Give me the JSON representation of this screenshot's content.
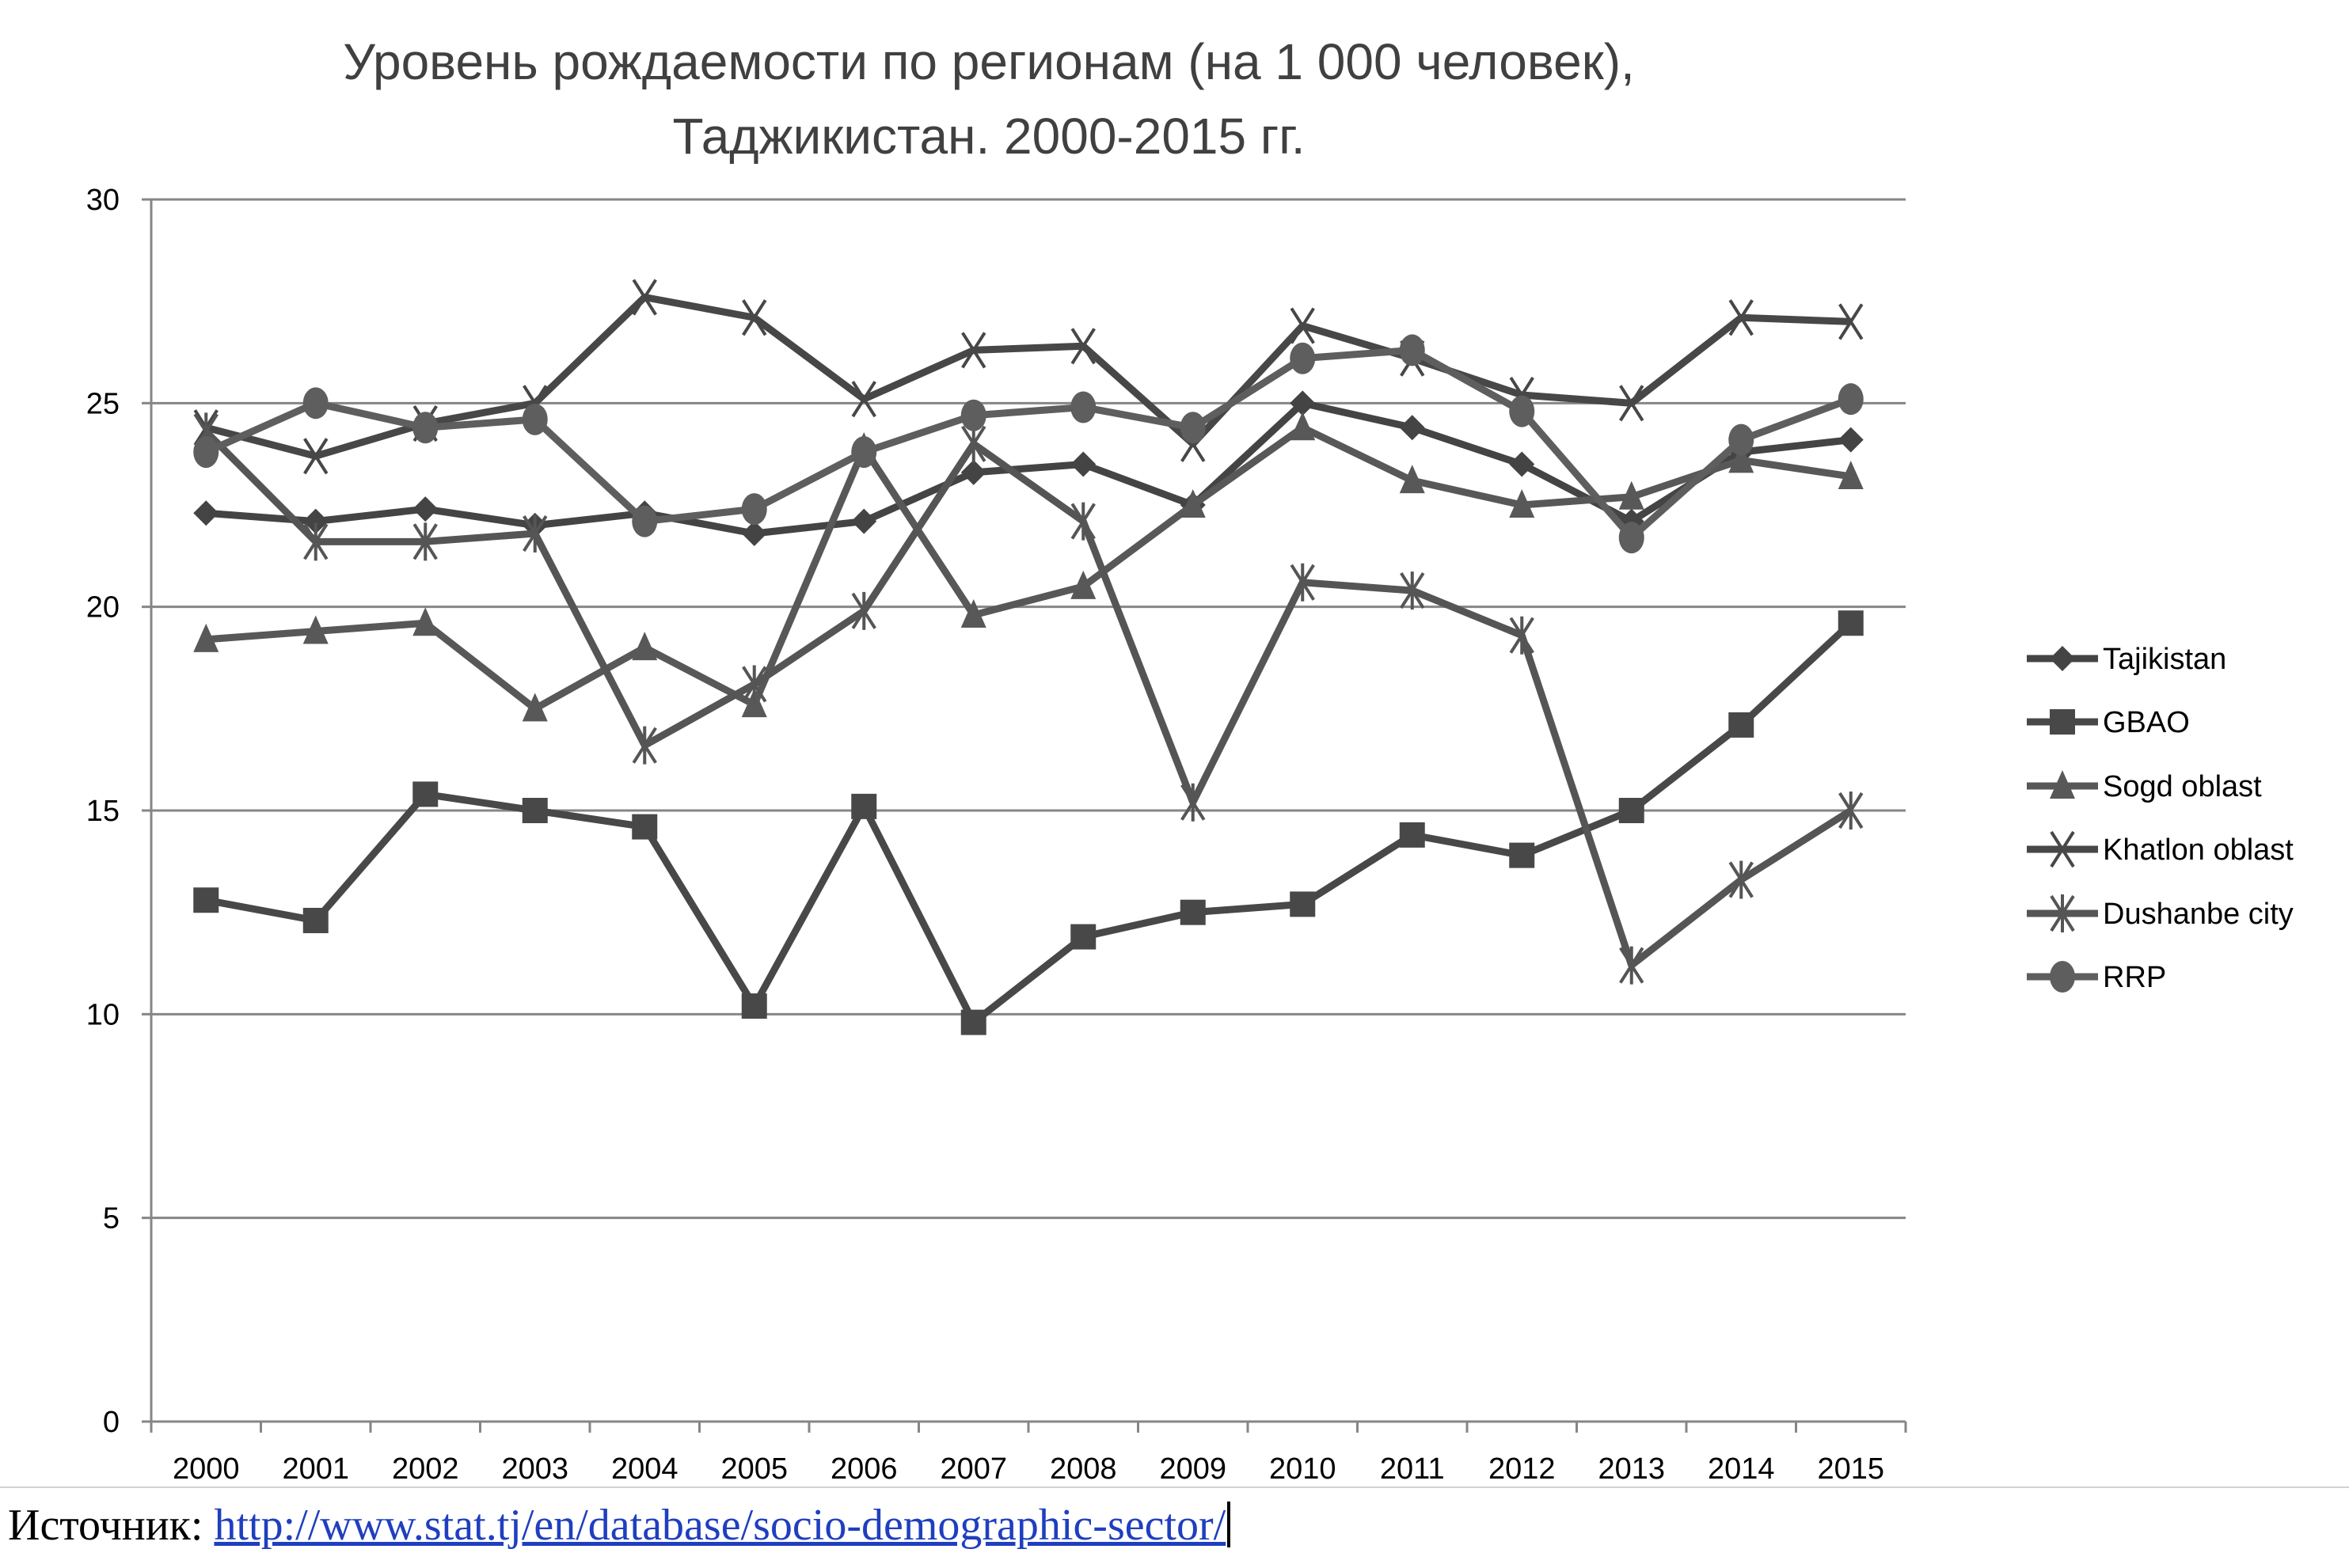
{
  "chart_data": {
    "type": "line",
    "title": [
      "Уровень рождаемости по регионам (на 1 000 человек),",
      "Таджикистан. 2000-2015 гг."
    ],
    "categories": [
      "2000",
      "2001",
      "2002",
      "2003",
      "2004",
      "2005",
      "2006",
      "2007",
      "2008",
      "2009",
      "2010",
      "2011",
      "2012",
      "2013",
      "2014",
      "2015"
    ],
    "ylim": [
      0,
      30
    ],
    "yticks": [
      0,
      5,
      10,
      15,
      20,
      25,
      30
    ],
    "grid": true,
    "legend_position": "right",
    "series": [
      {
        "name": "Tajikistan",
        "marker": "diamond",
        "color": "#444444",
        "values": [
          22.3,
          22.1,
          22.4,
          22.0,
          22.3,
          21.8,
          22.1,
          23.3,
          23.5,
          22.5,
          25.0,
          24.4,
          23.5,
          22.1,
          23.8,
          24.1
        ]
      },
      {
        "name": "GBAO",
        "marker": "square",
        "color": "#484848",
        "values": [
          12.8,
          12.3,
          15.4,
          15.0,
          14.6,
          10.2,
          15.1,
          9.8,
          11.9,
          12.5,
          12.7,
          14.4,
          13.9,
          15.0,
          17.1,
          19.6
        ]
      },
      {
        "name": "Sogd oblast",
        "marker": "triangle",
        "color": "#585858",
        "values": [
          19.2,
          19.4,
          19.6,
          17.5,
          19.0,
          17.6,
          23.9,
          19.8,
          20.5,
          22.5,
          24.4,
          23.1,
          22.5,
          22.7,
          23.6,
          23.2
        ]
      },
      {
        "name": "Khatlon oblast",
        "marker": "x",
        "color": "#474747",
        "values": [
          24.4,
          23.7,
          24.5,
          25.0,
          27.6,
          27.1,
          25.1,
          26.3,
          26.4,
          24.0,
          26.9,
          26.1,
          25.2,
          25.0,
          27.1,
          27.0
        ]
      },
      {
        "name": "Dushanbe city",
        "marker": "star",
        "color": "#555555",
        "values": [
          24.3,
          21.6,
          21.6,
          21.8,
          16.6,
          18.1,
          19.9,
          24.0,
          22.1,
          15.2,
          20.6,
          20.4,
          19.3,
          11.2,
          13.3,
          15.0
        ]
      },
      {
        "name": "RRP",
        "marker": "circle",
        "color": "#5e5e5e",
        "values": [
          23.8,
          25.0,
          24.4,
          24.6,
          22.1,
          22.4,
          23.8,
          24.7,
          24.9,
          24.4,
          26.1,
          26.3,
          24.8,
          21.7,
          24.1,
          25.1
        ]
      }
    ]
  },
  "source": {
    "label": "Источник:",
    "link": "http://www.stat.tj/en/database/socio-demographic-sector/"
  }
}
